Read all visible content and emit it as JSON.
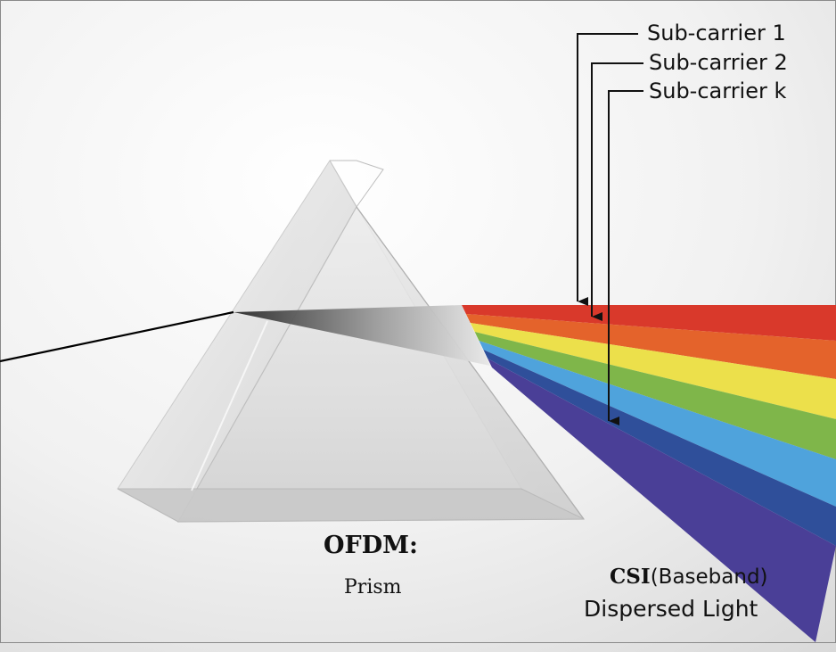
{
  "labels": {
    "subcarrier_1": "Sub-carrier 1",
    "subcarrier_2": "Sub-carrier 2",
    "subcarrier_k": "Sub-carrier k",
    "ofdm": "OFDM:",
    "prism": "Prism",
    "csi": "CSI",
    "baseband": "(Baseband)",
    "dispersed_light": "Dispersed Light"
  },
  "spectrum_colors": [
    "#d9392b",
    "#e4632b",
    "#ece04b",
    "#7fb64a",
    "#4fa3dc",
    "#2f4f9a",
    "#4a3f97"
  ]
}
